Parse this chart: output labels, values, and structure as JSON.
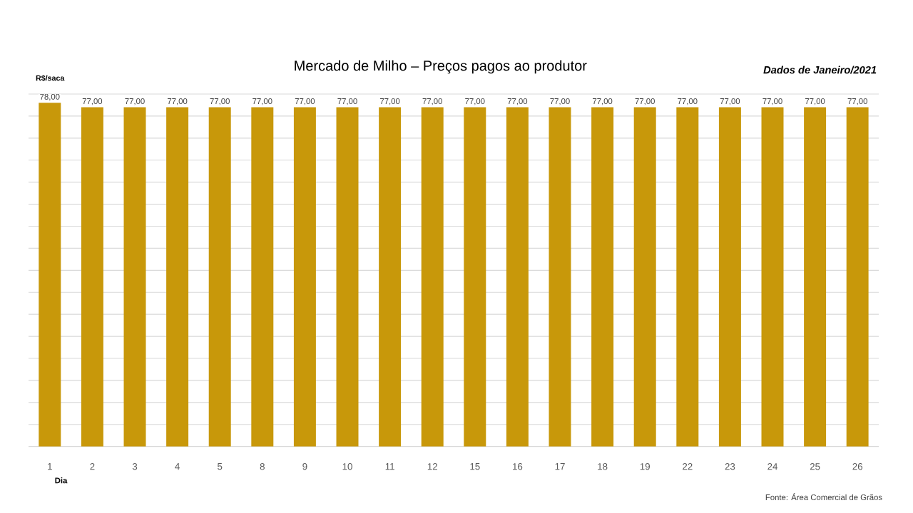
{
  "chart_data": {
    "type": "bar",
    "title": "Mercado de Milho – Preços pagos ao produtor",
    "subtitle": "Dados de Janeiro/2021",
    "xlabel": "Dia",
    "ylabel": "R$/saca",
    "annotations": [
      "Fonte: Área Comercial de Grãos"
    ],
    "categories": [
      "1",
      "2",
      "3",
      "4",
      "5",
      "8",
      "9",
      "10",
      "11",
      "12",
      "15",
      "16",
      "17",
      "18",
      "19",
      "22",
      "23",
      "24",
      "25",
      "26"
    ],
    "values": [
      78,
      77,
      77,
      77,
      77,
      77,
      77,
      77,
      77,
      77,
      77,
      77,
      77,
      77,
      77,
      77,
      77,
      77,
      77,
      77
    ],
    "value_labels": [
      "78,00",
      "77,00",
      "77,00",
      "77,00",
      "77,00",
      "77,00",
      "77,00",
      "77,00",
      "77,00",
      "77,00",
      "77,00",
      "77,00",
      "77,00",
      "77,00",
      "77,00",
      "77,00",
      "77,00",
      "77,00",
      "77,00",
      "77,00"
    ],
    "color": "#c8980a",
    "ylim": [
      0,
      80
    ],
    "yticks": [
      {
        "value": 0,
        "label": null
      },
      {
        "value": 5,
        "label": null
      },
      {
        "value": 10,
        "label": null
      },
      {
        "value": 15,
        "label": null
      },
      {
        "value": 20,
        "label": null
      },
      {
        "value": 25,
        "label": null
      },
      {
        "value": 30,
        "label": null
      },
      {
        "value": 35,
        "label": null
      },
      {
        "value": 40,
        "label": null
      },
      {
        "value": 45,
        "label": null
      },
      {
        "value": 50,
        "label": null
      },
      {
        "value": 55,
        "label": null
      },
      {
        "value": 60,
        "label": null
      },
      {
        "value": 65,
        "label": null
      },
      {
        "value": 70,
        "label": null
      },
      {
        "value": 75,
        "label": null
      },
      {
        "value": 80,
        "label": null
      }
    ],
    "grid": "y",
    "tick_labels": "x"
  }
}
